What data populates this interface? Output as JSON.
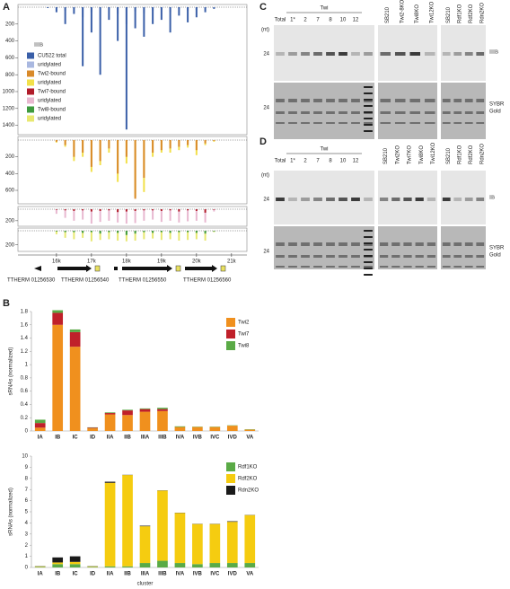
{
  "panel_labels": [
    "A",
    "B",
    "C",
    "D"
  ],
  "chart_data": [
    {
      "type": "coverage",
      "legend_title": "IIIB",
      "x": [
        15750,
        16000,
        16250,
        16500,
        16750,
        17000,
        17250,
        17500,
        17750,
        18000,
        18250,
        18500,
        18750,
        19000,
        19250,
        19500,
        19750,
        20000,
        20250,
        20500
      ],
      "xlim": [
        14900,
        21440
      ],
      "ylim": [
        0,
        1500
      ],
      "yticks": [
        200,
        400,
        600,
        800,
        1000,
        1200,
        1400
      ],
      "series": [
        {
          "name": "CU522 total",
          "color": "#3a5fa8",
          "values": [
            10,
            60,
            200,
            80,
            700,
            300,
            800,
            150,
            400,
            1450,
            250,
            350,
            200,
            150,
            300,
            100,
            180,
            120,
            60,
            20
          ]
        },
        {
          "name": "uridylated",
          "color": "#a9b8e0",
          "values": [
            0,
            10,
            40,
            20,
            120,
            60,
            150,
            30,
            80,
            200,
            50,
            70,
            40,
            30,
            60,
            20,
            40,
            30,
            10,
            0
          ]
        }
      ]
    },
    {
      "type": "coverage",
      "x": [
        15750,
        16000,
        16250,
        16500,
        16750,
        17000,
        17250,
        17500,
        17750,
        18000,
        18250,
        18500,
        18750,
        19000,
        19250,
        19500,
        19750,
        20000,
        20250,
        20500
      ],
      "xlim": [
        14900,
        21440
      ],
      "ylim": [
        0,
        750
      ],
      "yticks": [
        200,
        400,
        600
      ],
      "series": [
        {
          "name": "Twi2-bound",
          "color": "#d98a2a",
          "values": [
            0,
            20,
            60,
            200,
            150,
            320,
            250,
            100,
            400,
            200,
            700,
            450,
            150,
            120,
            100,
            80,
            60,
            120,
            40,
            10
          ]
        },
        {
          "name": "uridylated",
          "color": "#f2e04a",
          "values": [
            0,
            30,
            80,
            250,
            200,
            380,
            300,
            150,
            500,
            280,
            680,
            620,
            200,
            150,
            150,
            120,
            90,
            180,
            60,
            20
          ]
        }
      ]
    },
    {
      "type": "coverage",
      "x": [
        15750,
        16000,
        16250,
        16500,
        16750,
        17000,
        17250,
        17500,
        17750,
        18000,
        18250,
        18500,
        18750,
        19000,
        19250,
        19500,
        19750,
        20000,
        20250,
        20500
      ],
      "xlim": [
        14900,
        21440
      ],
      "ylim": [
        0,
        280
      ],
      "yticks": [
        200
      ],
      "series": [
        {
          "name": "Twi7-bound",
          "color": "#b11c2a",
          "values": [
            0,
            10,
            20,
            30,
            20,
            40,
            30,
            20,
            50,
            40,
            30,
            20,
            20,
            30,
            20,
            40,
            20,
            30,
            60,
            10
          ]
        },
        {
          "name": "uridylated",
          "color": "#e8b8d0",
          "values": [
            0,
            80,
            150,
            200,
            180,
            250,
            220,
            200,
            230,
            250,
            240,
            200,
            180,
            220,
            200,
            230,
            210,
            200,
            230,
            40
          ]
        }
      ]
    },
    {
      "type": "coverage",
      "x": [
        15750,
        16000,
        16250,
        16500,
        16750,
        17000,
        17250,
        17500,
        17750,
        18000,
        18250,
        18500,
        18750,
        19000,
        19250,
        19500,
        19750,
        20000,
        20250,
        20500
      ],
      "xlim": [
        14900,
        21440
      ],
      "ylim": [
        0,
        280
      ],
      "yticks": [
        200
      ],
      "xticks": [
        {
          "value": 16000,
          "label": "16k"
        },
        {
          "value": 17000,
          "label": "17k"
        },
        {
          "value": 18000,
          "label": "18k"
        },
        {
          "value": 19000,
          "label": "19k"
        },
        {
          "value": 20000,
          "label": "20k"
        },
        {
          "value": 21000,
          "label": "21k"
        }
      ],
      "series": [
        {
          "name": "Twi8-bound",
          "color": "#3e9a3e",
          "values": [
            0,
            10,
            20,
            20,
            30,
            20,
            40,
            20,
            30,
            60,
            40,
            20,
            30,
            20,
            30,
            20,
            20,
            30,
            40,
            10
          ]
        },
        {
          "name": "uridylated",
          "color": "#e8e870",
          "values": [
            0,
            50,
            100,
            120,
            100,
            150,
            130,
            120,
            140,
            150,
            140,
            120,
            110,
            130,
            120,
            140,
            130,
            120,
            140,
            20
          ]
        }
      ]
    },
    {
      "type": "stacked_bar",
      "y_label": "sRNAs (normalized)",
      "categories": [
        "IA",
        "IB",
        "IC",
        "ID",
        "IIA",
        "IIB",
        "IIIA",
        "IIIB",
        "IVA",
        "IVB",
        "IVC",
        "IVD",
        "VA"
      ],
      "ylim": [
        0,
        1.8
      ],
      "yticks": [
        0,
        0.2,
        0.4,
        0.6,
        0.8,
        1,
        1.2,
        1.4,
        1.6,
        1.8
      ],
      "series": [
        {
          "name": "Twi2",
          "color": "#f0901e",
          "values": [
            0.05,
            1.6,
            1.27,
            0.04,
            0.25,
            0.24,
            0.29,
            0.3,
            0.06,
            0.06,
            0.06,
            0.08,
            0.02
          ]
        },
        {
          "name": "Twi7",
          "color": "#c0202a",
          "values": [
            0.07,
            0.18,
            0.22,
            0.01,
            0.02,
            0.07,
            0.04,
            0.03,
            0,
            0,
            0,
            0,
            0
          ]
        },
        {
          "name": "Twi8",
          "color": "#5aaa46",
          "values": [
            0.05,
            0.04,
            0.04,
            0.005,
            0.01,
            0.01,
            0.01,
            0.02,
            0.01,
            0.005,
            0.005,
            0.005,
            0.005
          ]
        }
      ]
    },
    {
      "type": "stacked_bar",
      "y_label": "sRNAs (normalized)",
      "x_label": "cluster",
      "categories": [
        "IA",
        "IB",
        "IC",
        "ID",
        "IIA",
        "IIB",
        "IIIA",
        "IIIB",
        "IVA",
        "IVB",
        "IVC",
        "IVD",
        "VA"
      ],
      "ylim": [
        0,
        10
      ],
      "yticks": [
        0,
        1,
        2,
        3,
        4,
        5,
        6,
        7,
        8,
        9,
        10
      ],
      "series": [
        {
          "name": "Rdf1KO",
          "color": "#5aaa46",
          "values": [
            0.05,
            0.3,
            0.3,
            0.05,
            0.1,
            0.1,
            0.4,
            0.6,
            0.4,
            0.3,
            0.4,
            0.4,
            0.4
          ]
        },
        {
          "name": "Rdf2KO",
          "color": "#f5cc10",
          "values": [
            0.05,
            0.15,
            0.2,
            0.05,
            7.5,
            8.2,
            3.3,
            6.3,
            4.5,
            3.6,
            3.5,
            3.7,
            4.3
          ]
        },
        {
          "name": "Rdn2KO",
          "color": "#1a1a1a",
          "values": [
            0.02,
            0.45,
            0.5,
            0.02,
            0.1,
            0.02,
            0.05,
            0.02,
            0.02,
            0.02,
            0.02,
            0.05,
            0.02
          ]
        }
      ]
    }
  ],
  "gene_labels": [
    "TTHERM  01256530",
    "TTHERM  01256540",
    "TTHERM  01256550",
    "TTHERM  01256560"
  ],
  "gels": [
    {
      "unit": "(nt)",
      "size_labels": [
        "24",
        "24"
      ],
      "total": "Total",
      "group": "Twi",
      "group_lanes": [
        "1*",
        "2",
        "7",
        "8",
        "10",
        "12"
      ],
      "blocks": [
        [
          "SB210",
          "Twi2-8KO",
          "Twi8KO",
          "Twi12KO"
        ],
        [
          "SB210",
          "Rdf1KO",
          "Rdf2KO",
          "Rdn2KO"
        ]
      ],
      "probe": "IIIB",
      "stain": [
        "SYBR",
        "Gold"
      ]
    },
    {
      "unit": "(nt)",
      "size_labels": [
        "24",
        "24"
      ],
      "total": "Total",
      "group": "Twi",
      "group_lanes": [
        "1*",
        "2",
        "7",
        "8",
        "10",
        "12"
      ],
      "blocks": [
        [
          "SB210",
          "Twi2KO",
          "Twi7KO",
          "Twi8KO",
          "Twi12KO"
        ],
        [
          "SB210",
          "Rdf1KO",
          "Rdf2KO",
          "Rdn2KO"
        ]
      ],
      "probe": "IB",
      "stain": [
        "SYBR",
        "Gold"
      ]
    }
  ]
}
